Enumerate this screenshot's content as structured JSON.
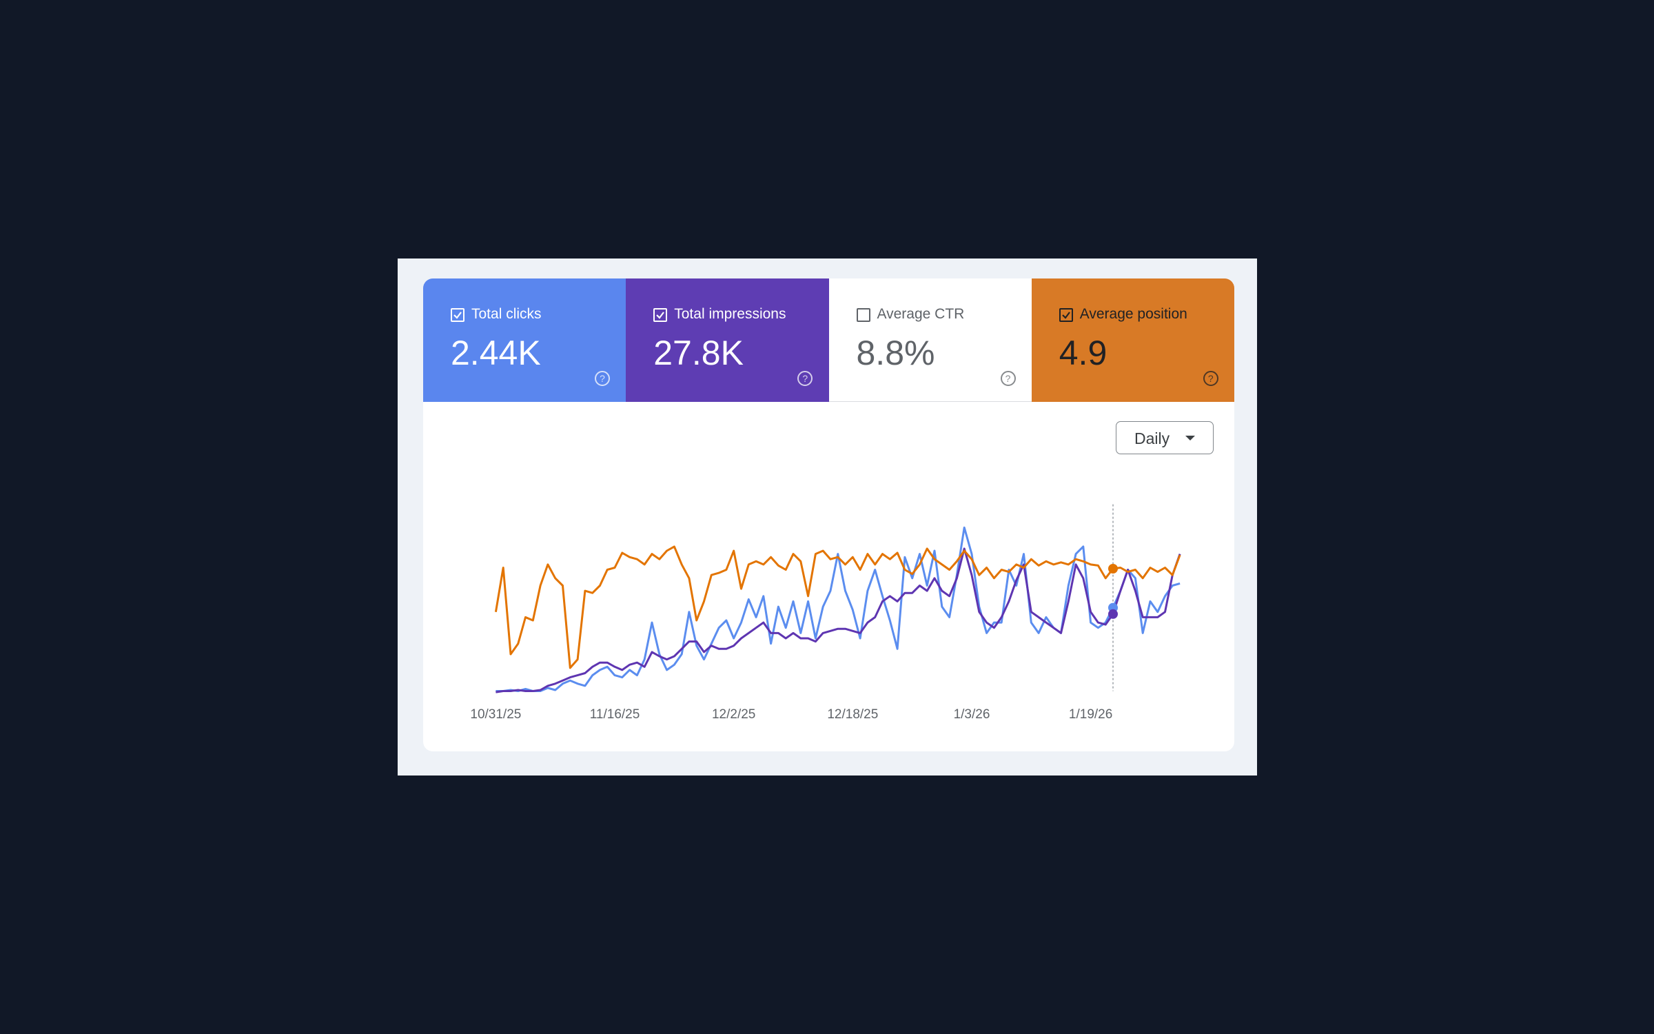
{
  "metrics": [
    {
      "label": "Total clicks",
      "value": "2.44K",
      "checked": true,
      "color": "#5a86ee"
    },
    {
      "label": "Total impressions",
      "value": "27.8K",
      "checked": true,
      "color": "#5e3db3"
    },
    {
      "label": "Average CTR",
      "value": "8.8%",
      "checked": false,
      "color": "#ffffff"
    },
    {
      "label": "Average position",
      "value": "4.9",
      "checked": true,
      "color": "#d87a26"
    }
  ],
  "range_button": "Daily",
  "chart_data": {
    "type": "line",
    "categories": [
      "10/31/25",
      null,
      null,
      null,
      null,
      null,
      null,
      null,
      null,
      null,
      null,
      null,
      null,
      null,
      null,
      null,
      "11/16/25",
      null,
      null,
      null,
      null,
      null,
      null,
      null,
      null,
      null,
      null,
      null,
      null,
      null,
      null,
      null,
      "12/2/25",
      null,
      null,
      null,
      null,
      null,
      null,
      null,
      null,
      null,
      null,
      null,
      null,
      null,
      null,
      null,
      "12/18/25",
      null,
      null,
      null,
      null,
      null,
      null,
      null,
      null,
      null,
      null,
      null,
      null,
      null,
      null,
      null,
      "1/3/26",
      null,
      null,
      null,
      null,
      null,
      null,
      null,
      null,
      null,
      null,
      null,
      null,
      null,
      null,
      null,
      "1/19/26",
      null,
      null,
      null,
      null,
      null,
      null,
      null,
      null,
      null,
      null,
      null,
      null
    ],
    "series": [
      {
        "name": "Total clicks",
        "color": "#5b8def",
        "values": [
          5,
          5,
          6,
          5,
          7,
          5,
          5,
          8,
          6,
          12,
          15,
          12,
          10,
          20,
          25,
          28,
          20,
          18,
          25,
          20,
          35,
          70,
          40,
          25,
          30,
          40,
          80,
          48,
          35,
          50,
          65,
          72,
          55,
          70,
          92,
          75,
          95,
          50,
          85,
          65,
          90,
          60,
          90,
          55,
          85,
          100,
          135,
          100,
          82,
          55,
          100,
          120,
          95,
          72,
          45,
          132,
          112,
          135,
          105,
          138,
          85,
          75,
          115,
          160,
          135,
          85,
          60,
          70,
          70,
          120,
          105,
          135,
          70,
          60,
          75,
          65,
          60,
          105,
          135,
          142,
          70,
          65,
          70,
          84,
          100,
          120,
          112,
          60,
          90,
          80,
          95,
          105,
          107
        ]
      },
      {
        "name": "Total impressions",
        "color": "#5e35b1",
        "values": [
          4,
          5,
          5,
          6,
          5,
          5,
          6,
          10,
          12,
          15,
          18,
          20,
          22,
          28,
          32,
          32,
          28,
          25,
          30,
          32,
          28,
          42,
          38,
          35,
          38,
          45,
          52,
          52,
          42,
          48,
          45,
          45,
          48,
          55,
          60,
          65,
          70,
          60,
          60,
          55,
          60,
          55,
          55,
          52,
          60,
          62,
          64,
          64,
          62,
          60,
          70,
          75,
          90,
          95,
          90,
          98,
          98,
          105,
          100,
          112,
          100,
          95,
          112,
          140,
          115,
          80,
          70,
          65,
          75,
          90,
          110,
          125,
          80,
          75,
          70,
          65,
          60,
          90,
          125,
          112,
          80,
          70,
          68,
          78,
          100,
          120,
          100,
          75,
          75,
          75,
          80,
          115,
          135
        ]
      },
      {
        "name": "Average position",
        "color": "#e37400",
        "values": [
          80,
          122,
          40,
          50,
          75,
          72,
          105,
          125,
          112,
          105,
          27,
          35,
          100,
          98,
          105,
          120,
          122,
          136,
          132,
          130,
          125,
          135,
          130,
          138,
          142,
          125,
          112,
          72,
          90,
          115,
          117,
          120,
          138,
          102,
          125,
          128,
          125,
          132,
          124,
          120,
          135,
          128,
          95,
          135,
          138,
          130,
          132,
          125,
          132,
          120,
          135,
          125,
          135,
          130,
          136,
          120,
          116,
          125,
          140,
          130,
          125,
          120,
          128,
          138,
          130,
          115,
          122,
          112,
          120,
          118,
          125,
          122,
          130,
          124,
          128,
          125,
          127,
          125,
          130,
          128,
          125,
          124,
          112,
          121,
          122,
          118,
          120,
          112,
          122,
          118,
          122,
          115,
          134
        ]
      }
    ]
  }
}
